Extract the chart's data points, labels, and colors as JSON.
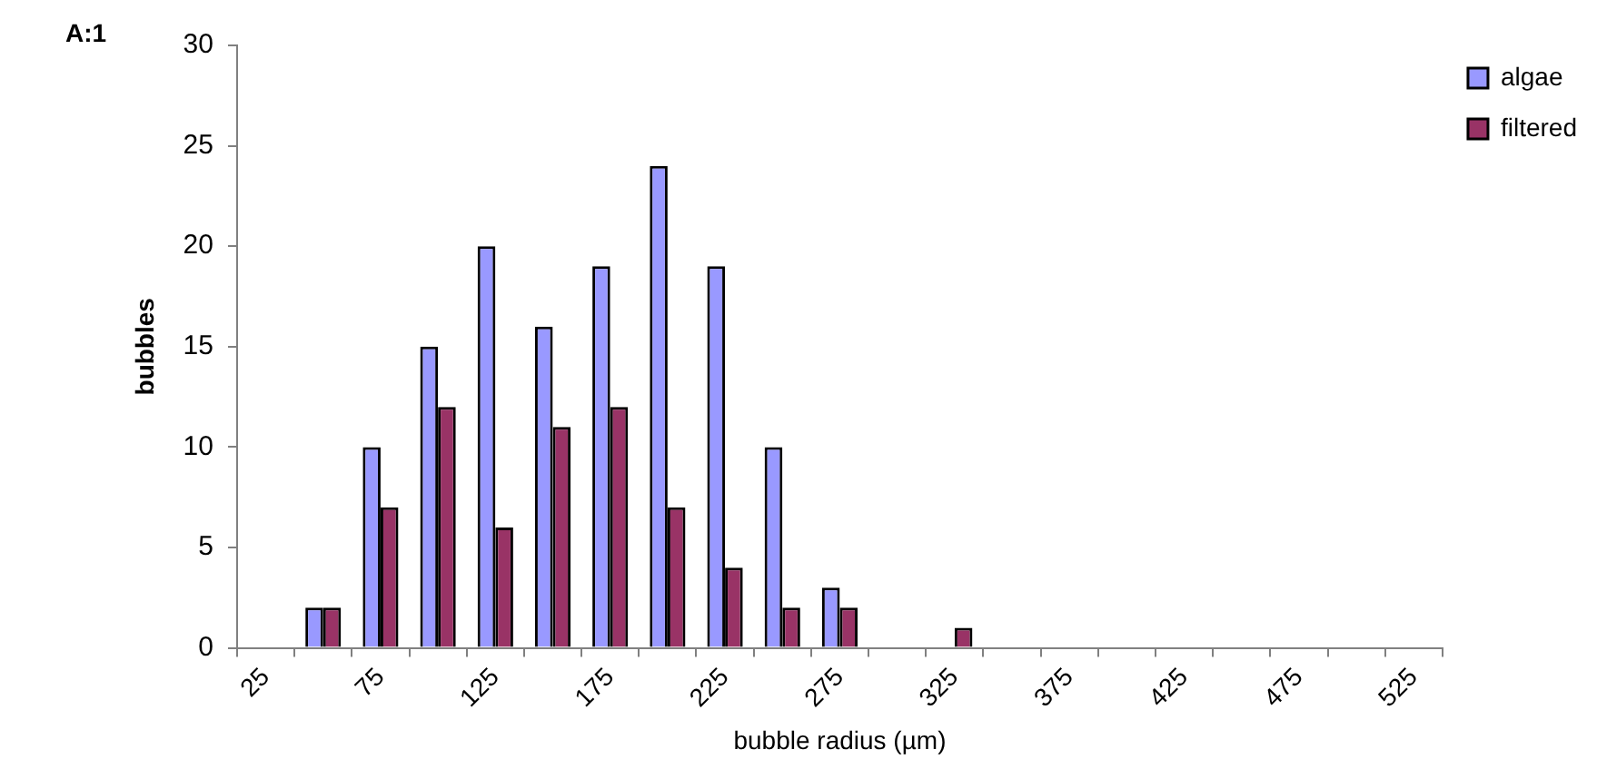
{
  "chart_data": {
    "type": "bar",
    "xlabel": "bubble radius (µm)",
    "ylabel": "bubbles",
    "annotations": [
      "A:1"
    ],
    "categories": [
      "25",
      null,
      "75",
      null,
      "125",
      null,
      "175",
      null,
      "225",
      null,
      "275",
      null,
      "325",
      null,
      "375",
      null,
      "425",
      null,
      "475",
      null,
      "525"
    ],
    "series": [
      {
        "name": "algae",
        "color": "#9999ff",
        "values": [
          0,
          2,
          10,
          15,
          20,
          16,
          19,
          24,
          19,
          10,
          3,
          0,
          0,
          0,
          0,
          0,
          0,
          0,
          0,
          0,
          0
        ]
      },
      {
        "name": "filtered",
        "color": "#993366",
        "values": [
          0,
          2,
          7,
          12,
          6,
          11,
          12,
          7,
          4,
          2,
          2,
          0,
          1,
          0,
          0,
          0,
          0,
          0,
          0,
          0,
          0
        ]
      }
    ],
    "ylim": [
      0,
      30
    ],
    "yticks": [
      0,
      5,
      10,
      15,
      20,
      25,
      30
    ],
    "grid": false,
    "legend": "top right"
  }
}
